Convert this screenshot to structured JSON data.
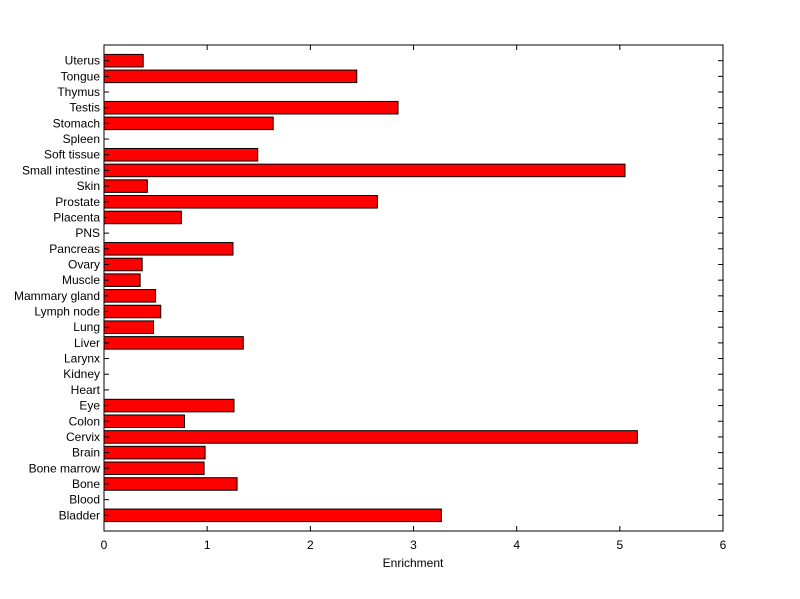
{
  "chart_data": {
    "type": "bar",
    "orientation": "horizontal",
    "categories": [
      "Bladder",
      "Blood",
      "Bone",
      "Bone marrow",
      "Brain",
      "Cervix",
      "Colon",
      "Eye",
      "Heart",
      "Kidney",
      "Larynx",
      "Liver",
      "Lung",
      "Lymph node",
      "Mammary gland",
      "Muscle",
      "Ovary",
      "Pancreas",
      "PNS",
      "Placenta",
      "Prostate",
      "Skin",
      "Small intestine",
      "Soft tissue",
      "Spleen",
      "Stomach",
      "Testis",
      "Thymus",
      "Tongue",
      "Uterus"
    ],
    "values": [
      3.27,
      0,
      1.29,
      0.97,
      0.98,
      5.17,
      0.78,
      1.26,
      0,
      0,
      0,
      1.35,
      0.48,
      0.55,
      0.5,
      0.35,
      0.37,
      1.25,
      0,
      0.75,
      2.65,
      0.42,
      5.05,
      1.49,
      0,
      1.64,
      2.85,
      0,
      2.45,
      0.38
    ],
    "xlabel": "Enrichment",
    "ylabel": "",
    "title": "",
    "xlim": [
      0,
      6
    ],
    "xticks": [
      "0",
      "1",
      "2",
      "3",
      "4",
      "5",
      "6"
    ],
    "grid": false,
    "bar_color": "#ff0000",
    "bar_edge_color": "#000000"
  }
}
